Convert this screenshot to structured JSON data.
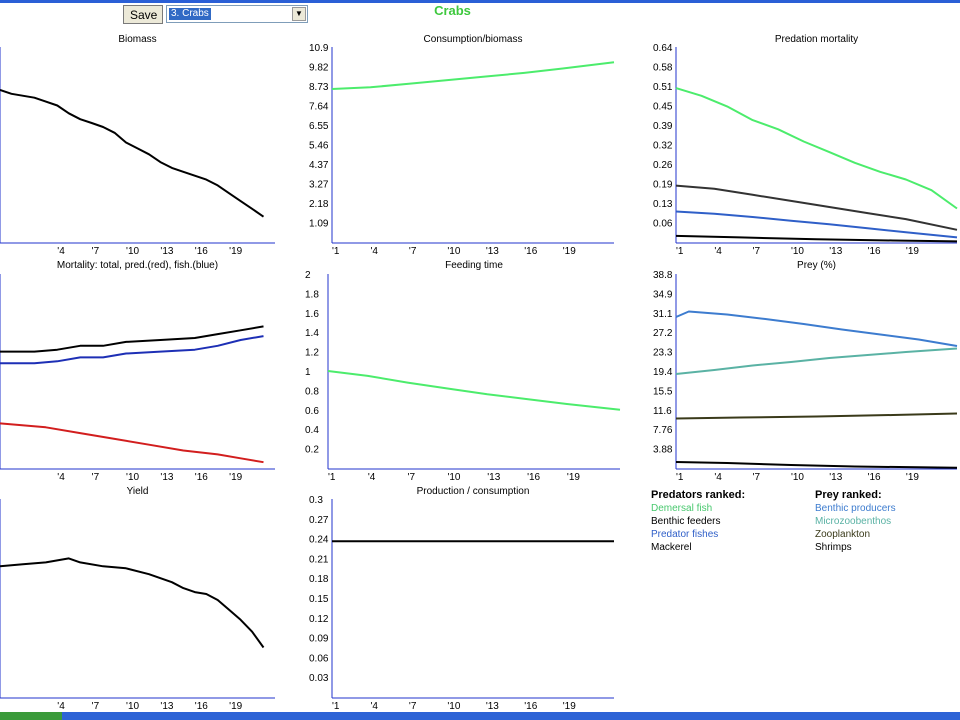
{
  "toolbar": {
    "save_label": "Save",
    "group_selected": "3. Crabs"
  },
  "group_title": "Crabs",
  "legend": {
    "predators_title": "Predators ranked:",
    "predators": [
      {
        "name": "Demersal fish",
        "color": "#48c86e"
      },
      {
        "name": "Benthic feeders",
        "color": "#000000"
      },
      {
        "name": "Predator fishes",
        "color": "#2f5fc8"
      },
      {
        "name": "Mackerel",
        "color": "#000000"
      }
    ],
    "prey_title": "Prey ranked:",
    "prey": [
      {
        "name": "Benthic producers",
        "color": "#3d7ccf"
      },
      {
        "name": "Microzoobenthos",
        "color": "#5ab2a4"
      },
      {
        "name": "Zooplankton",
        "color": "#3a3a1a"
      },
      {
        "name": "Shrimps",
        "color": "#000000"
      }
    ]
  },
  "chart_data": [
    {
      "id": "biomass",
      "type": "line",
      "title": "Biomass",
      "x_ticks": [
        "'4",
        "'7",
        "'10",
        "'13",
        "'16",
        "'19"
      ],
      "y_ticks": [],
      "xlim": [
        -1,
        23
      ],
      "ylim": [
        0,
        1
      ],
      "series": [
        {
          "color": "#000000",
          "points": [
            [
              -1,
              0.78
            ],
            [
              0,
              0.76
            ],
            [
              2,
              0.74
            ],
            [
              3,
              0.72
            ],
            [
              4,
              0.7
            ],
            [
              5,
              0.66
            ],
            [
              6,
              0.63
            ],
            [
              7,
              0.61
            ],
            [
              8,
              0.59
            ],
            [
              9,
              0.56
            ],
            [
              10,
              0.51
            ],
            [
              11,
              0.48
            ],
            [
              12,
              0.45
            ],
            [
              13,
              0.41
            ],
            [
              14,
              0.38
            ],
            [
              15,
              0.36
            ],
            [
              16,
              0.34
            ],
            [
              17,
              0.32
            ],
            [
              18,
              0.29
            ],
            [
              19,
              0.25
            ],
            [
              20,
              0.21
            ],
            [
              21,
              0.17
            ],
            [
              22,
              0.13
            ]
          ]
        }
      ]
    },
    {
      "id": "consumption_biomass",
      "type": "line",
      "title": "Consumption/biomass",
      "x_ticks": [
        "'1",
        "'4",
        "'7",
        "'10",
        "'13",
        "'16",
        "'19"
      ],
      "y_ticks": [
        "1.09",
        "2.18",
        "3.27",
        "4.37",
        "5.46",
        "6.55",
        "7.64",
        "8.73",
        "9.82",
        "10.9"
      ],
      "xlim": [
        1,
        23
      ],
      "ylim": [
        0,
        10.9
      ],
      "series": [
        {
          "color": "#4cec6c",
          "points": [
            [
              1,
              8.55
            ],
            [
              4,
              8.65
            ],
            [
              7,
              8.85
            ],
            [
              10,
              9.05
            ],
            [
              13,
              9.25
            ],
            [
              16,
              9.45
            ],
            [
              19,
              9.7
            ],
            [
              23,
              10.05
            ]
          ]
        }
      ]
    },
    {
      "id": "predation_mortality",
      "type": "line",
      "title": "Predation mortality",
      "x_ticks": [
        "'1",
        "'4",
        "'7",
        "'10",
        "'13",
        "'16",
        "'19"
      ],
      "y_ticks": [
        "0.06",
        "0.13",
        "0.19",
        "0.26",
        "0.32",
        "0.39",
        "0.45",
        "0.51",
        "0.58",
        "0.64"
      ],
      "xlim": [
        1,
        23
      ],
      "ylim": [
        0,
        0.64
      ],
      "series": [
        {
          "color": "#4cec6c",
          "points": [
            [
              1,
              0.505
            ],
            [
              3,
              0.48
            ],
            [
              5,
              0.445
            ],
            [
              7,
              0.4
            ],
            [
              9,
              0.37
            ],
            [
              11,
              0.33
            ],
            [
              13,
              0.295
            ],
            [
              15,
              0.26
            ],
            [
              17,
              0.23
            ],
            [
              19,
              0.205
            ],
            [
              21,
              0.17
            ],
            [
              23,
              0.11
            ]
          ]
        },
        {
          "color": "#333333",
          "points": [
            [
              1,
              0.185
            ],
            [
              4,
              0.175
            ],
            [
              7,
              0.155
            ],
            [
              10,
              0.135
            ],
            [
              13,
              0.115
            ],
            [
              16,
              0.095
            ],
            [
              19,
              0.075
            ],
            [
              23,
              0.04
            ]
          ]
        },
        {
          "color": "#2f5fc8",
          "points": [
            [
              1,
              0.1
            ],
            [
              4,
              0.093
            ],
            [
              7,
              0.082
            ],
            [
              10,
              0.07
            ],
            [
              13,
              0.058
            ],
            [
              16,
              0.045
            ],
            [
              19,
              0.032
            ],
            [
              23,
              0.015
            ]
          ]
        },
        {
          "color": "#000000",
          "points": [
            [
              1,
              0.02
            ],
            [
              6,
              0.015
            ],
            [
              12,
              0.009
            ],
            [
              18,
              0.005
            ],
            [
              23,
              0.002
            ]
          ]
        }
      ]
    },
    {
      "id": "mortality",
      "type": "line",
      "title": "Mortality: total, pred.(red), fish.(blue)",
      "x_ticks": [
        "'4",
        "'7",
        "'10",
        "'13",
        "'16",
        "'19"
      ],
      "y_ticks": [],
      "xlim": [
        -1,
        23
      ],
      "ylim": [
        0,
        1
      ],
      "series": [
        {
          "color": "#000000",
          "points": [
            [
              -1,
              0.6
            ],
            [
              2,
              0.6
            ],
            [
              4,
              0.61
            ],
            [
              6,
              0.63
            ],
            [
              8,
              0.63
            ],
            [
              10,
              0.65
            ],
            [
              13,
              0.66
            ],
            [
              16,
              0.67
            ],
            [
              18,
              0.69
            ],
            [
              20,
              0.71
            ],
            [
              22,
              0.73
            ]
          ]
        },
        {
          "color": "#1d2fb5",
          "points": [
            [
              -1,
              0.54
            ],
            [
              2,
              0.54
            ],
            [
              4,
              0.55
            ],
            [
              6,
              0.57
            ],
            [
              8,
              0.57
            ],
            [
              10,
              0.59
            ],
            [
              13,
              0.6
            ],
            [
              16,
              0.61
            ],
            [
              18,
              0.63
            ],
            [
              20,
              0.66
            ],
            [
              22,
              0.68
            ]
          ]
        },
        {
          "color": "#d21e1e",
          "points": [
            [
              -1,
              0.23
            ],
            [
              3,
              0.21
            ],
            [
              6,
              0.18
            ],
            [
              9,
              0.15
            ],
            [
              12,
              0.12
            ],
            [
              15,
              0.09
            ],
            [
              18,
              0.07
            ],
            [
              20,
              0.05
            ],
            [
              22,
              0.03
            ]
          ]
        }
      ]
    },
    {
      "id": "feeding_time",
      "type": "line",
      "title": "Feeding time",
      "x_ticks": [
        "'1",
        "'4",
        "'7",
        "'10",
        "'13",
        "'16",
        "'19"
      ],
      "y_ticks": [
        "0.2",
        "0.4",
        "0.6",
        "0.8",
        "1",
        "1.2",
        "1.4",
        "1.6",
        "1.8",
        "2"
      ],
      "xlim": [
        1,
        23
      ],
      "ylim": [
        0,
        2
      ],
      "series": [
        {
          "color": "#4cec6c",
          "points": [
            [
              1,
              1.0
            ],
            [
              4,
              0.95
            ],
            [
              7,
              0.88
            ],
            [
              10,
              0.82
            ],
            [
              13,
              0.76
            ],
            [
              16,
              0.71
            ],
            [
              19,
              0.66
            ],
            [
              23,
              0.6
            ]
          ]
        }
      ]
    },
    {
      "id": "prey_pct",
      "type": "line",
      "title": "Prey (%)",
      "x_ticks": [
        "'1",
        "'4",
        "'7",
        "'10",
        "'13",
        "'16",
        "'19"
      ],
      "y_ticks": [
        "3.88",
        "7.76",
        "11.6",
        "15.5",
        "19.4",
        "23.3",
        "27.2",
        "31.1",
        "34.9",
        "38.8"
      ],
      "xlim": [
        1,
        23
      ],
      "ylim": [
        0,
        38.8
      ],
      "series": [
        {
          "color": "#3d7ccf",
          "points": [
            [
              1,
              30.2
            ],
            [
              2,
              31.3
            ],
            [
              5,
              30.7
            ],
            [
              8,
              29.8
            ],
            [
              11,
              28.8
            ],
            [
              14,
              27.7
            ],
            [
              17,
              26.7
            ],
            [
              20,
              25.7
            ],
            [
              23,
              24.4
            ]
          ]
        },
        {
          "color": "#5ab2a4",
          "points": [
            [
              1,
              18.8
            ],
            [
              4,
              19.6
            ],
            [
              7,
              20.5
            ],
            [
              10,
              21.2
            ],
            [
              13,
              22.0
            ],
            [
              16,
              22.6
            ],
            [
              19,
              23.2
            ],
            [
              23,
              23.9
            ]
          ]
        },
        {
          "color": "#3a3a1a",
          "points": [
            [
              1,
              9.9
            ],
            [
              6,
              10.1
            ],
            [
              12,
              10.3
            ],
            [
              18,
              10.6
            ],
            [
              23,
              10.9
            ]
          ]
        },
        {
          "color": "#000000",
          "points": [
            [
              1,
              1.2
            ],
            [
              5,
              1.0
            ],
            [
              10,
              0.6
            ],
            [
              15,
              0.3
            ],
            [
              20,
              0.15
            ],
            [
              23,
              0.05
            ]
          ]
        }
      ]
    },
    {
      "id": "yield",
      "type": "line",
      "title": "Yield",
      "x_ticks": [
        "'4",
        "'7",
        "'10",
        "'13",
        "'16",
        "'19"
      ],
      "y_ticks": [],
      "xlim": [
        -1,
        23
      ],
      "ylim": [
        0,
        1
      ],
      "series": [
        {
          "color": "#000000",
          "points": [
            [
              -1,
              0.66
            ],
            [
              1,
              0.67
            ],
            [
              3,
              0.68
            ],
            [
              5,
              0.7
            ],
            [
              6,
              0.68
            ],
            [
              8,
              0.66
            ],
            [
              10,
              0.65
            ],
            [
              12,
              0.62
            ],
            [
              14,
              0.58
            ],
            [
              15,
              0.55
            ],
            [
              16,
              0.53
            ],
            [
              17,
              0.52
            ],
            [
              18,
              0.49
            ],
            [
              19,
              0.44
            ],
            [
              20,
              0.39
            ],
            [
              21,
              0.33
            ],
            [
              22,
              0.25
            ]
          ]
        }
      ]
    },
    {
      "id": "production_consumption",
      "type": "line",
      "title": "Production / consumption",
      "x_ticks": [
        "'1",
        "'4",
        "'7",
        "'10",
        "'13",
        "'16",
        "'19"
      ],
      "y_ticks": [
        "0.03",
        "0.06",
        "0.09",
        "0.12",
        "0.15",
        "0.18",
        "0.21",
        "0.24",
        "0.27",
        "0.3"
      ],
      "xlim": [
        1,
        23
      ],
      "ylim": [
        0,
        0.3
      ],
      "series": [
        {
          "color": "#000000",
          "points": [
            [
              1,
              0.236
            ],
            [
              23,
              0.236
            ]
          ]
        }
      ]
    }
  ]
}
